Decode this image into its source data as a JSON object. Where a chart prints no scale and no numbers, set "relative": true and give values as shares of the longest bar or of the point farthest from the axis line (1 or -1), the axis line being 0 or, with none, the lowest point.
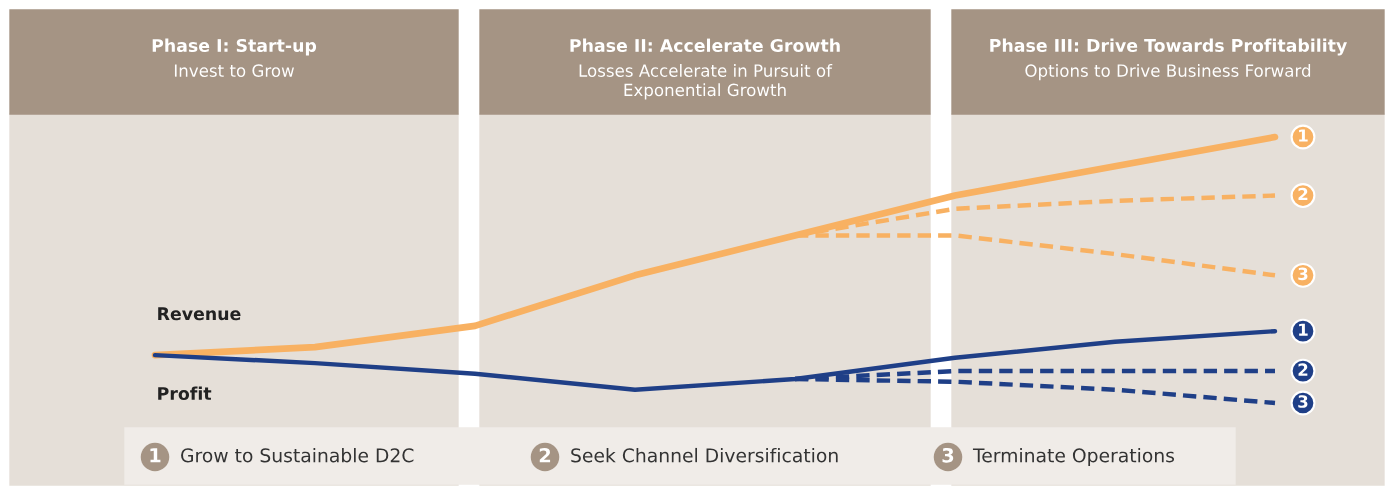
{
  "chart_data": {
    "type": "line",
    "relative": true,
    "legend": false,
    "marker": "none",
    "categories": [
      null,
      null,
      null,
      null,
      null,
      null,
      null,
      null
    ],
    "series": [
      {
        "name": "Revenue",
        "color": "#f8b162",
        "line_style": "solid",
        "values": [
          0.18,
          0.21,
          0.29,
          0.48,
          0.63,
          0.78,
          0.89,
          1
        ]
      },
      {
        "color": "#f8b162",
        "line_style": "dashed",
        "values": [
          null,
          null,
          null,
          null,
          0.63,
          0.73,
          0.76,
          0.78
        ]
      },
      {
        "color": "#f8b162",
        "line_style": "dashed",
        "values": [
          null,
          null,
          null,
          null,
          0.63,
          0.63,
          0.56,
          0.48
        ]
      },
      {
        "name": "Profit",
        "color": "#1f3f87",
        "line_style": "solid",
        "values": [
          0.18,
          0.15,
          0.11,
          0.05,
          0.09,
          0.17,
          0.23,
          0.27
        ]
      },
      {
        "color": "#1f3f87",
        "line_style": "dashed",
        "values": [
          null,
          null,
          null,
          null,
          0.09,
          0.12,
          0.12,
          0.12
        ]
      },
      {
        "color": "#1f3f87",
        "line_style": "dashed",
        "values": [
          null,
          null,
          null,
          null,
          0.09,
          0.08,
          0.05,
          0
        ]
      }
    ],
    "annotations": [
      "Phase I: Start-up",
      "Invest to Grow",
      "Phase II: Accelerate Growth",
      "Losses Accelerate in Pursuit of Exponential Growth",
      "Phase III: Drive Towards Profitability",
      "Options to Drive Business Forward",
      "1",
      "Grow to Sustainable D2C",
      "2",
      "Seek Channel Diversification",
      "3",
      "Terminate Operations",
      {
        "text": "1",
        "y": 1
      },
      {
        "text": "2",
        "y": 0.78
      },
      {
        "text": "3",
        "y": 0.48
      },
      {
        "text": "1",
        "y": 0.27
      },
      {
        "text": "2",
        "y": 0.12
      },
      {
        "text": "3",
        "y": 0
      }
    ]
  }
}
